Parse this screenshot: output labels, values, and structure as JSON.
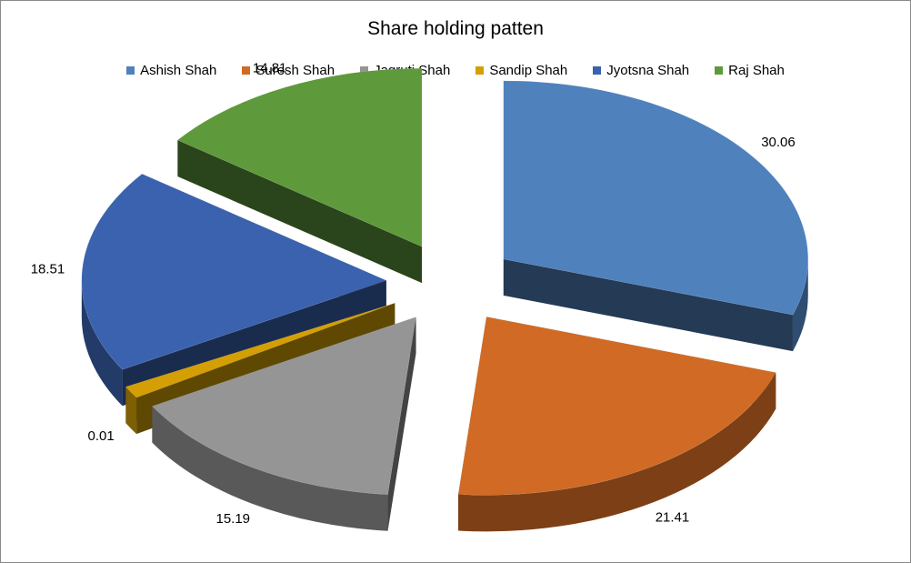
{
  "chart_data": {
    "type": "pie",
    "title": "Share holding patten",
    "legend_position": "top",
    "categories": [
      "Ashish Shah",
      "Suresh Shah",
      "Jagruti Shah",
      "Sandip Shah",
      "Jyotsna Shah",
      "Raj Shah"
    ],
    "values": [
      30.06,
      21.41,
      15.19,
      0.01,
      18.51,
      14.81
    ],
    "data_labels": [
      "30.06",
      "21.41",
      "15.19",
      "0.01",
      "18.51",
      "14.81"
    ],
    "colors": [
      "#4F81BD",
      "#D06A25",
      "#959595",
      "#D49F05",
      "#3A62AE",
      "#5E9A3C"
    ],
    "style": "3d-exploded-pie"
  }
}
